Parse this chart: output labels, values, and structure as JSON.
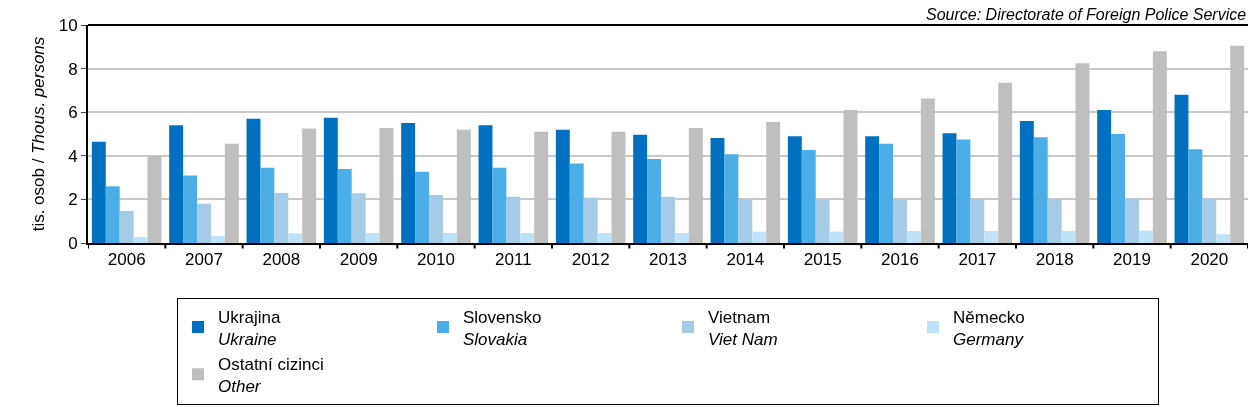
{
  "chart_data": {
    "type": "bar",
    "ylabel": "tis. osob / Thous. persons",
    "annotations": [
      "Source: Directorate of Foreign Police Service"
    ],
    "categories": [
      "2006",
      "2007",
      "2008",
      "2009",
      "2010",
      "2011",
      "2012",
      "2013",
      "2014",
      "2015",
      "2016",
      "2017",
      "2018",
      "2019",
      "2020"
    ],
    "series": [
      {
        "name": "Ukrajina\nUkraine",
        "color": "#0070c0",
        "values": [
          4.65,
          5.4,
          5.7,
          5.75,
          5.5,
          5.4,
          5.2,
          4.97,
          4.82,
          4.9,
          4.9,
          5.03,
          5.6,
          6.1,
          6.8
        ]
      },
      {
        "name": "Slovensko\nSlovakia",
        "color": "#4baee6",
        "values": [
          2.6,
          3.1,
          3.45,
          3.4,
          3.27,
          3.45,
          3.65,
          3.85,
          4.07,
          4.27,
          4.55,
          4.75,
          4.85,
          5.0,
          4.3
        ]
      },
      {
        "name": "Vietnam\nViet Nam",
        "color": "#a6cbe6",
        "values": [
          1.47,
          1.8,
          2.3,
          2.28,
          2.2,
          2.12,
          2.08,
          2.12,
          2.0,
          2.0,
          1.98,
          2.0,
          2.03,
          2.05,
          2.05
        ]
      },
      {
        "name": "Německo\nGermany",
        "color": "#c0e2f6",
        "values": [
          0.27,
          0.33,
          0.45,
          0.46,
          0.46,
          0.46,
          0.46,
          0.46,
          0.52,
          0.52,
          0.55,
          0.55,
          0.55,
          0.57,
          0.4
        ]
      },
      {
        "name": "Ostatní cizinci\nOther",
        "color": "#bfbfbf",
        "values": [
          4.0,
          4.55,
          5.25,
          5.28,
          5.2,
          5.1,
          5.1,
          5.28,
          5.55,
          6.1,
          6.63,
          7.35,
          8.25,
          8.8,
          9.05
        ]
      }
    ],
    "ylim": [
      0,
      10
    ],
    "yticks": [
      0,
      2,
      4,
      6,
      8,
      10
    ],
    "grid": "y",
    "legend": "bottom"
  }
}
